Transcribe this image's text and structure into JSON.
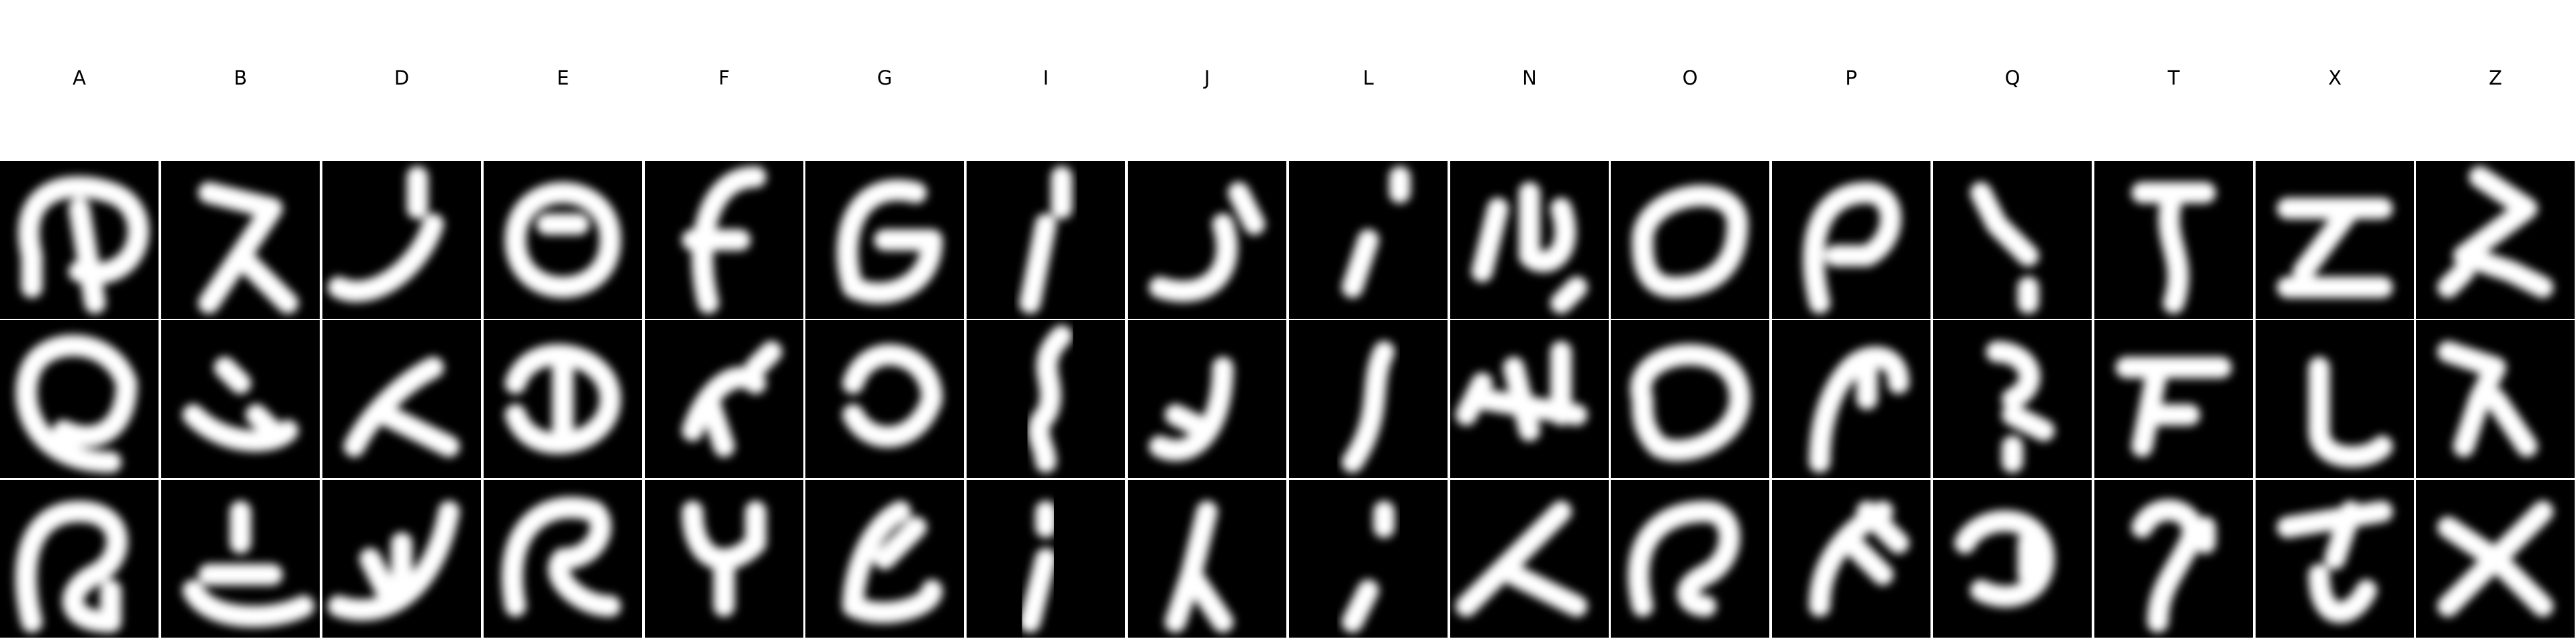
{
  "columns": [
    {
      "label": "A",
      "samples": [
        [
          "M-3 1 C-4 -3 -1 -4 2 -3 C5 -2 4 3 0 2 M0 -2 L1 4 M-3 3 L-3 1"
        ],
        [
          "M2 4 C-3 4 -4 0 -3 -2 C-2 -4 2 -4 3 -1 C3 2 1 3 -1 2"
        ],
        [
          "M-3 4 C-4 0 -3 -3 0 -3 C3 -3 3 0 1 1 C-1 2 -1 4 2 4 L2 2"
        ]
      ]
    },
    {
      "label": "B",
      "samples": [
        [
          "M-2 -3 L2 -2 L0 1 L-2 4 M0 1 L3 4"
        ],
        [
          "M-1 -2 L0 -1 M-3 1 C-1 3 2 3 3 2 M1 1 L2 2"
        ],
        [
          "M0 -3 L0 -1 M-3 2 C-2 4 2 4 4 3 M-2 1 L2 1"
        ]
      ]
    },
    {
      "label": "D",
      "samples": [
        [
          "M1 -4 L1 -2 M-4 3 C-2 4 1 2 2 -1"
        ],
        [
          "M-3 3 C-2 1 0 -1 2 -2 M-1 1 L3 3"
        ],
        [
          "M-4 3 C-1 4 2 2 3 -3 M0 -1 L0 2 M-2 0 L-1 2"
        ]
      ]
    },
    {
      "label": "E",
      "samples": [
        [
          "M-3 0 C-3 -4 3 -4 3 0 C3 4 -3 4 -3 0 M-1 -1 L1 -1"
        ],
        [
          "M-3 -1 C-2 -4 3 -3 3 0 C3 3 -2 4 -3 1 M0 -2 L0 2"
        ],
        [
          "M-3 3 C-4 -2 -1 -4 2 -3 C3 -2 2 0 0 0 C-1 1 1 3 3 3"
        ]
      ]
    },
    {
      "label": "F",
      "samples": [
        [
          "M2 -4 C-1 -4 -2 0 -1 4 M-2 0 L1 0"
        ],
        [
          "M3 -3 L2 -2 M-2 2 C-1 -1 1 -2 2 -1 M-1 0 L0 3"
        ],
        [
          "M-2 -3 C-2 0 0 1 2 -1 M2 -3 L2 -1 M0 0 L0 3"
        ]
      ]
    },
    {
      "label": "G",
      "samples": [
        [
          "M2 -3 C-2 -4 -3 0 -2 3 C0 4 3 3 3 0 L0 0"
        ],
        [
          "M-2 -1 C-1 -4 3 -3 3 0 C2 3 -1 3 -2 1"
        ],
        [
          "M1 -3 C-1 -2 -2 1 -2 3 C0 4 3 3 3 2 M0 0 L2 -2"
        ]
      ]
    },
    {
      "label": "I",
      "samples": [
        [
          "M0 -1 L-1 4 M1 -4 L1 -2"
        ],
        [
          "M1 -4 C-1 -2 1 -1 0 1 C-1 2 0 3 0 4"
        ],
        [
          "M0 -3 L0 -2 M0 0 L-1 4"
        ]
      ]
    },
    {
      "label": "J",
      "samples": [
        [
          "M-3 3 C0 4 2 2 1 -1 M2 -3 L3 -1"
        ],
        [
          "M-3 3 C-1 4 1 2 1 -2 M-2 1 L0 2"
        ],
        [
          "M0 -3 L-1 1 L-2 4 M-1 1 L1 4"
        ]
      ]
    },
    {
      "label": "L",
      "samples": [
        [
          "M2 -4 L2 -3 M-1 3 L0 0"
        ],
        [
          "M1 -3 C0 -1 1 1 -1 4"
        ],
        [
          "M1 -3 L1 -2 M0 2 L-1 4"
        ]
      ]
    },
    {
      "label": "N",
      "samples": [
        [
          "M-3 2 L-2 -2 M0 -3 L0 1 C1 2 3 1 2 -2 M2 4 L3 3"
        ],
        [
          "M-4 1 L-3 -1 M-1 -2 L0 2 M2 -3 L2 1 M-3 0 L3 1"
        ],
        [
          "M-4 3 C-2 1 0 -1 2 -3 M-1 1 L3 3"
        ]
      ]
    },
    {
      "label": "O",
      "samples": [
        [
          "M-3 0 C-3 -3 3 -4 3 -1 C3 2 1 3 -1 3 C-3 3 -3 1 -3 0"
        ],
        [
          "M-3 0 C-4 -3 2 -4 3 -1 C4 2 0 4 -2 3 C-3 2 -3 1 -3 0"
        ],
        [
          "M-3 3 C-4 -1 -2 -3 1 -3 C3 -3 3 0 1 1 C-1 2 0 3 1 3"
        ]
      ]
    },
    {
      "label": "P",
      "samples": [
        [
          "M-2 4 C-3 0 -2 -3 1 -3 C3 -3 3 0 1 1 L-1 1"
        ],
        [
          "M-2 4 C-2 1 -1 -1 0 -2 C1 -3 3 -3 3 -1 M1 -2 L1 0"
        ],
        [
          "M-2 3 C-2 0 0 -2 2 -3 M0 -1 L2 1 M1 -3 L3 -1"
        ]
      ]
    },
    {
      "label": "Q",
      "samples": [
        [
          "M-2 -3 L-1 -1 L1 1 M1 3 L1 4"
        ],
        [
          "M-1 -3 C1 -3 2 -1 0 0 M0 1 L2 2 M0 3 L0 4"
        ],
        [
          "M-3 -1 C-2 -3 2 -3 2 0 C2 2 0 3 -2 2 M1 -1 L1 1"
        ]
      ]
    },
    {
      "label": "T",
      "samples": [
        [
          "M-2 -3 L2 -3 M0 -3 C-1 0 1 1 0 4"
        ],
        [
          "M-3 -2 L3 -2 M-1 -2 L-2 3 M-1 1 L1 1"
        ],
        [
          "M-2 -2 C-1 -4 2 -3 1 -1 C0 1 -1 2 -1 4 M2 -2 L2 -1"
        ]
      ]
    },
    {
      "label": "X",
      "samples": [
        [
          "M-3 -2 L3 -2 M1 -2 L-2 2 M-3 3 L3 3"
        ],
        [
          "M-1 -2 L-1 2 C-1 4 2 4 3 3"
        ],
        [
          "M-3 -2 L3 -3 M1 -3 L0 0 M-1 1 C-1 4 1 4 2 2"
        ]
      ]
    },
    {
      "label": "Z",
      "samples": [
        [
          "M-1 -4 L2 -2 L-2 1 L1 2 L3 3 M-3 3 L-2 2"
        ],
        [
          "M-3 -3 L0 -2 L-1 0 L-2 3 M0 0 L2 3"
        ],
        [
          "M-3 -2 L0 0 L3 -3 M0 0 L-3 3 M0 0 L3 3"
        ]
      ]
    }
  ]
}
